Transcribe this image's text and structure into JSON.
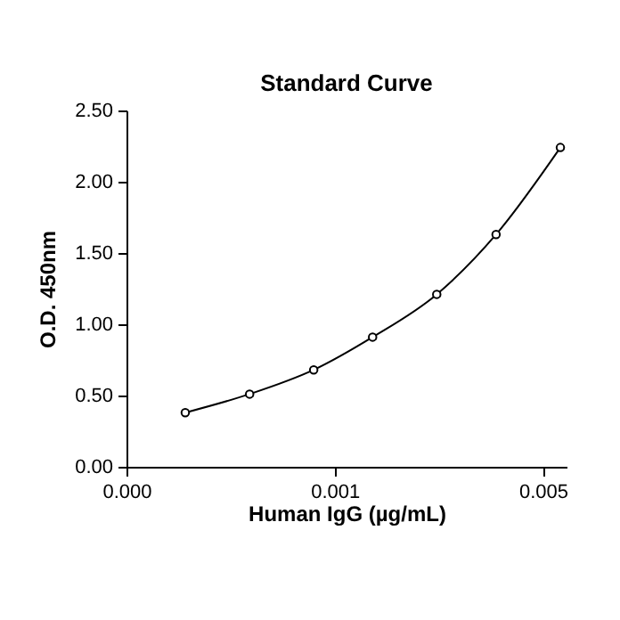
{
  "chart_data": {
    "type": "line",
    "title": "Standard Curve",
    "xlabel": "Human IgG (µg/mL)",
    "ylabel": "O.D. 450nm",
    "x": [
      0.000315,
      0.000518,
      0.00085,
      0.00134,
      0.0022,
      0.00348,
      0.00572
    ],
    "series": [
      {
        "color": "#000000",
        "values": [
          0.38,
          0.51,
          0.68,
          0.91,
          1.21,
          1.63,
          2.24
        ]
      }
    ],
    "log": "x",
    "xlim": [
      0.0002,
      0.006
    ],
    "xticks": [
      {
        "value": 0.0002,
        "label": "0.000"
      },
      {
        "value": 0.001,
        "label": "0.001"
      },
      {
        "value": 0.005,
        "label": "0.005"
      }
    ],
    "ylim": [
      0,
      2.5
    ],
    "yticks": [
      {
        "value": 0,
        "label": "0.00"
      },
      {
        "value": 0.5,
        "label": "0.50"
      },
      {
        "value": 1,
        "label": "1.00"
      },
      {
        "value": 1.5,
        "label": "1.50"
      },
      {
        "value": 2,
        "label": "2.00"
      },
      {
        "value": 2.5,
        "label": "2.50"
      }
    ],
    "grid": false,
    "marker": "circle",
    "line_style": "solid"
  }
}
